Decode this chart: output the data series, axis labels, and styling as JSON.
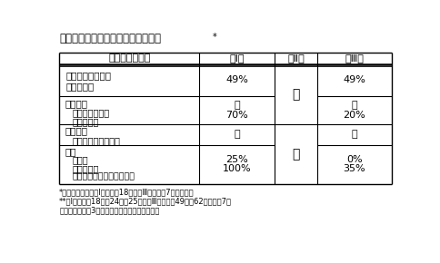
{
  "title": "表３　小正月行事の伝承基盤の変化",
  "title_asterisk": "*",
  "footnote1": "*数字はすべて、第Ⅰ期が昭和18年、第Ⅲ期が平成7年の概数。",
  "footnote2": "**第Ⅰ期は昭和18年、24年、25年、第Ⅲ期は昭和49年、62年、平成7年",
  "footnote3": "　の、それぞれ3ヵ年の演者名簿を参考にした。",
  "col_headers": [
    "伝承基盤の内容",
    "第Ⅰ期",
    "第Ⅱ期",
    "第Ⅲ期"
  ],
  "bg_color": "#ffffff",
  "border_color": "#000000",
  "font_size": 8.0
}
